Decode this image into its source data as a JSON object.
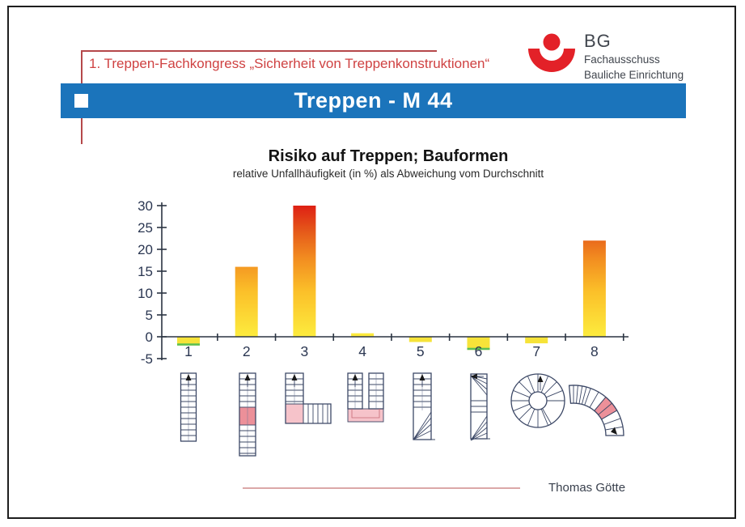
{
  "slide": {
    "congress_title": "1. Treppen-Fachkongress „Sicherheit von Treppenkonstruktionen“",
    "banner_title": "Treppen - M 44",
    "author": "Thomas Götte",
    "logo": {
      "abbr": "BG",
      "line1": "Fachausschuss",
      "line2": "Bauliche Einrichtung"
    }
  },
  "chart_data": {
    "type": "bar",
    "title": "Risiko auf Treppen; Bauformen",
    "subtitle": "relative Unfallhäufigkeit (in %) als Abweichung vom Durchschnitt",
    "categories": [
      "1",
      "2",
      "3",
      "4",
      "5",
      "6",
      "7",
      "8"
    ],
    "values": [
      -2,
      16,
      30,
      0.8,
      -1.2,
      -3,
      -1.5,
      22
    ],
    "green_base": [
      true,
      false,
      false,
      false,
      false,
      true,
      false,
      false
    ],
    "ylim": [
      -5,
      30
    ],
    "yticks": [
      30,
      25,
      20,
      15,
      10,
      5,
      0,
      -5
    ],
    "xlabel": "",
    "ylabel": "",
    "grid": false,
    "legend": "none",
    "bar_color_flat": "#f6e339",
    "bar_gradient": [
      "#fdec3e",
      "#fbbf29",
      "#f28c20",
      "#e55a1a",
      "#de2014"
    ],
    "green_base_color": "#5abf55",
    "category_stair_types": [
      "straight-flight",
      "straight-flight-with-landing",
      "quarter-turn-with-landing",
      "half-turn-with-landing",
      "quarter-winder",
      "double-winder",
      "spiral-stair",
      "curved-flight"
    ]
  },
  "colors": {
    "banner_blue": "#1b74bb",
    "accent_red": "#cf4242",
    "logo_red": "#e32128"
  }
}
